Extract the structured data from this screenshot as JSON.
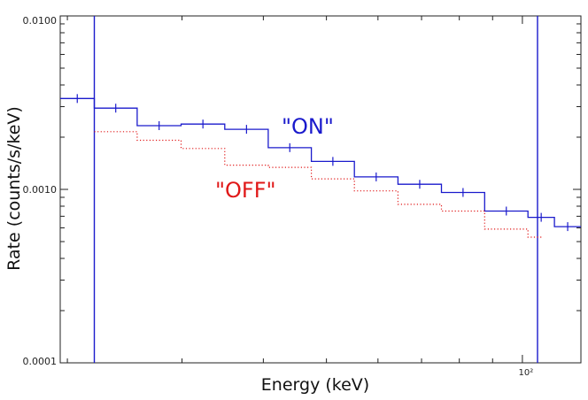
{
  "chart_data": {
    "type": "line",
    "title": "",
    "xlabel": "Energy (keV)",
    "ylabel": "Rate (counts/s/keV)",
    "xscale": "log",
    "yscale": "log",
    "xlim": [
      19.5,
      123
    ],
    "ylim": [
      0.0001,
      0.01
    ],
    "y_ticks": [
      {
        "value": 0.01,
        "label": "0.0100"
      },
      {
        "value": 0.001,
        "label": "0.0010"
      },
      {
        "value": 0.0001,
        "label": "0.0001"
      }
    ],
    "x_ticks": [
      {
        "value": 100,
        "label": "10²"
      }
    ],
    "vertical_lines": [
      {
        "value": 22.0,
        "color": "#1a1acc"
      },
      {
        "value": 105.5,
        "color": "#1a1acc"
      }
    ],
    "series": [
      {
        "name": "ON",
        "label": "\"ON\"",
        "color": "#1a1acc",
        "style": "solid-step-with-errorbars",
        "bins": [
          {
            "lo": 19.5,
            "hi": 22.0,
            "y": 0.00334
          },
          {
            "lo": 22.0,
            "hi": 25.6,
            "y": 0.00294
          },
          {
            "lo": 25.6,
            "hi": 29.9,
            "y": 0.00233
          },
          {
            "lo": 29.9,
            "hi": 34.9,
            "y": 0.00238
          },
          {
            "lo": 34.9,
            "hi": 40.7,
            "y": 0.00222
          },
          {
            "lo": 40.7,
            "hi": 47.4,
            "y": 0.00174
          },
          {
            "lo": 47.4,
            "hi": 55.2,
            "y": 0.00145
          },
          {
            "lo": 55.2,
            "hi": 64.4,
            "y": 0.00118
          },
          {
            "lo": 64.4,
            "hi": 75.1,
            "y": 0.00107
          },
          {
            "lo": 75.1,
            "hi": 87.5,
            "y": 0.00096
          },
          {
            "lo": 87.5,
            "hi": 102.0,
            "y": 0.00075
          },
          {
            "lo": 102.0,
            "hi": 112.0,
            "y": 0.00069
          },
          {
            "lo": 112.0,
            "hi": 123.0,
            "y": 0.00061
          }
        ]
      },
      {
        "name": "OFF",
        "label": "\"OFF\"",
        "color": "#e01818",
        "style": "dotted-step",
        "bins": [
          {
            "lo": 22.0,
            "hi": 25.6,
            "y": 0.00215
          },
          {
            "lo": 25.6,
            "hi": 29.9,
            "y": 0.00192
          },
          {
            "lo": 29.9,
            "hi": 34.9,
            "y": 0.00172
          },
          {
            "lo": 34.9,
            "hi": 40.7,
            "y": 0.00138
          },
          {
            "lo": 40.7,
            "hi": 47.4,
            "y": 0.00134
          },
          {
            "lo": 47.4,
            "hi": 55.2,
            "y": 0.00115
          },
          {
            "lo": 55.2,
            "hi": 64.4,
            "y": 0.00098
          },
          {
            "lo": 64.4,
            "hi": 75.1,
            "y": 0.00082
          },
          {
            "lo": 75.1,
            "hi": 87.5,
            "y": 0.00075
          },
          {
            "lo": 87.5,
            "hi": 102.0,
            "y": 0.00059
          },
          {
            "lo": 102.0,
            "hi": 107.0,
            "y": 0.00053
          }
        ]
      }
    ]
  }
}
